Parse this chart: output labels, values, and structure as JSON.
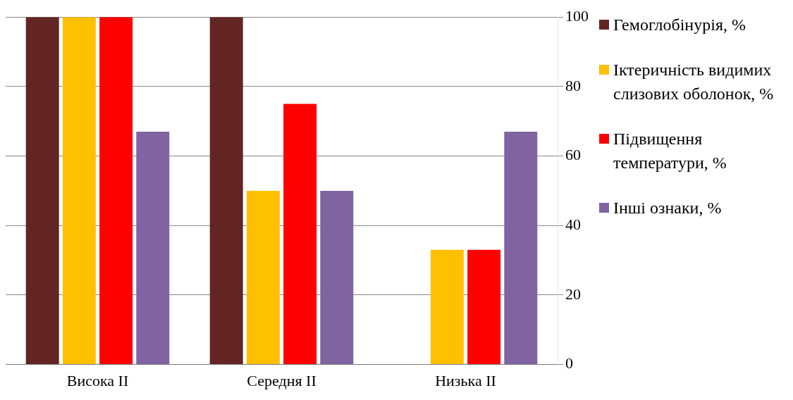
{
  "chart_data": {
    "type": "bar",
    "categories": [
      "Висока II",
      "Середня II",
      "Низька II"
    ],
    "series": [
      {
        "name": "Гемоглобінурія, %",
        "color": "#632523",
        "values": [
          100,
          100,
          0
        ]
      },
      {
        "name": "Іктеричність видимих слизових оболонок, %",
        "color": "#ffc000",
        "values": [
          100,
          50,
          33
        ]
      },
      {
        "name": "Підвищення температури, %",
        "color": "#ff0000",
        "values": [
          100,
          75,
          33
        ]
      },
      {
        "name": "Інші ознаки, %",
        "color": "#8064a2",
        "values": [
          67,
          50,
          67
        ]
      }
    ],
    "ylim": [
      0,
      100
    ],
    "yticks": [
      0,
      20,
      40,
      60,
      80,
      100
    ],
    "grid": "y",
    "legend": "right"
  }
}
